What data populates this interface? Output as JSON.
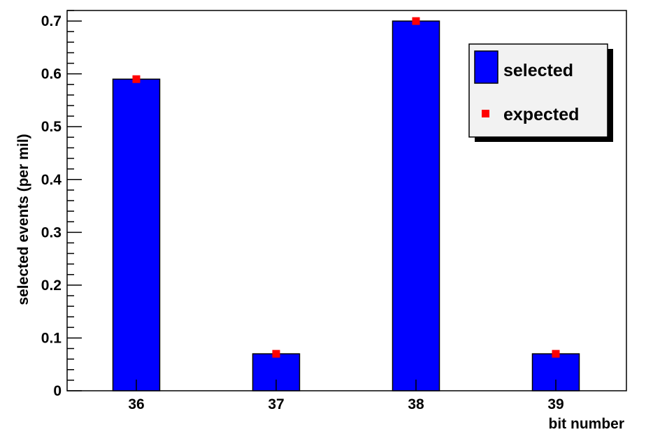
{
  "chart_data": {
    "type": "bar",
    "categories": [
      "36",
      "37",
      "38",
      "39"
    ],
    "series": [
      {
        "name": "selected",
        "kind": "bar",
        "values": [
          0.59,
          0.07,
          0.7,
          0.07
        ]
      },
      {
        "name": "expected",
        "kind": "marker",
        "values": [
          0.59,
          0.07,
          0.7,
          0.07
        ]
      }
    ],
    "xlabel": "bit number",
    "ylabel": "selected events (per mil)",
    "ylim": [
      0,
      0.72
    ],
    "yticks": [
      "0",
      "0.1",
      "0.2",
      "0.3",
      "0.4",
      "0.5",
      "0.6",
      "0.7"
    ],
    "ytick_values": [
      0,
      0.1,
      0.2,
      0.3,
      0.4,
      0.5,
      0.6,
      0.7
    ],
    "grid": false,
    "legend_position": "top-right"
  },
  "colors": {
    "bar_fill": "#0000ff",
    "marker": "#ff0000",
    "legend_background": "#f2f2f2"
  }
}
